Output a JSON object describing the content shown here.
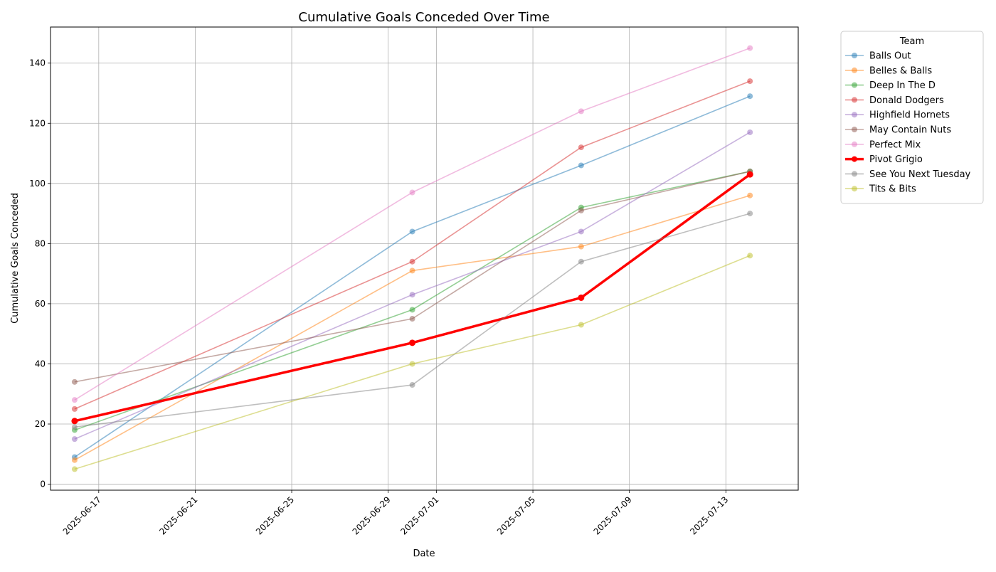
{
  "chart_data": {
    "type": "line",
    "title": "Cumulative Goals Conceded Over Time",
    "xlabel": "Date",
    "ylabel": "Cumulative Goals Conceded",
    "x": [
      "2025-06-16",
      "2025-06-30",
      "2025-07-07",
      "2025-07-14"
    ],
    "xlim": [
      "2025-06-15",
      "2025-07-16"
    ],
    "ylim": [
      -2,
      152
    ],
    "x_ticks": [
      "2025-06-17",
      "2025-06-21",
      "2025-06-25",
      "2025-06-29",
      "2025-07-01",
      "2025-07-05",
      "2025-07-09",
      "2025-07-13"
    ],
    "y_ticks": [
      0,
      20,
      40,
      60,
      80,
      100,
      120,
      140
    ],
    "grid": true,
    "legend": {
      "title": "Team",
      "placement": "outside-top-right"
    },
    "series": [
      {
        "name": "Balls Out",
        "color": "#1f77b4",
        "values": [
          9,
          84,
          106,
          129
        ]
      },
      {
        "name": "Belles & Balls",
        "color": "#ff7f0e",
        "values": [
          8,
          71,
          79,
          96
        ]
      },
      {
        "name": "Deep In The D",
        "color": "#2ca02c",
        "values": [
          18,
          58,
          92,
          104
        ]
      },
      {
        "name": "Donald Dodgers",
        "color": "#d62728",
        "values": [
          25,
          74,
          112,
          134
        ]
      },
      {
        "name": "Highfield Hornets",
        "color": "#9467bd",
        "values": [
          15,
          63,
          84,
          117
        ]
      },
      {
        "name": "May Contain Nuts",
        "color": "#8c564b",
        "values": [
          34,
          55,
          91,
          104
        ]
      },
      {
        "name": "Perfect Mix",
        "color": "#e377c2",
        "values": [
          28,
          97,
          124,
          145
        ]
      },
      {
        "name": "Pivot Grigio",
        "color": "#ff0000",
        "highlight": true,
        "values": [
          21,
          47,
          62,
          103
        ]
      },
      {
        "name": "See You Next Tuesday",
        "color": "#7f7f7f",
        "values": [
          19,
          33,
          74,
          90
        ]
      },
      {
        "name": "Tits & Bits",
        "color": "#bcbd22",
        "values": [
          5,
          40,
          53,
          76
        ]
      }
    ]
  }
}
